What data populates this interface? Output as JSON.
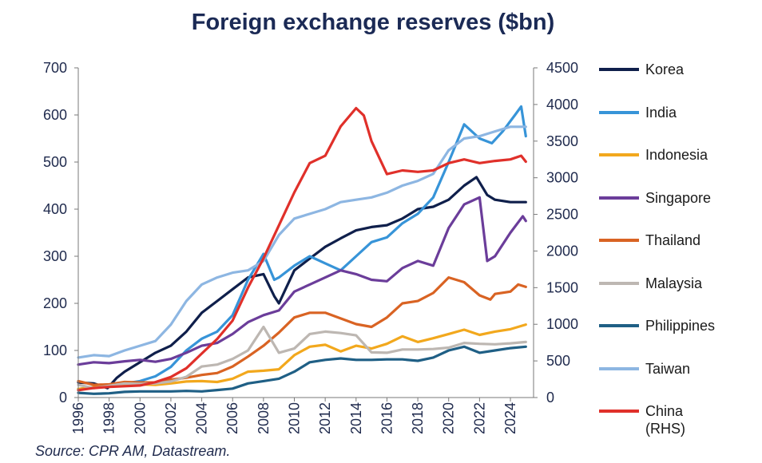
{
  "chart_data": {
    "type": "line",
    "title": "Foreign exchange reserves ($bn)",
    "source": "Source: CPR AM, Datastream.",
    "x_ticks": [
      "1996",
      "1998",
      "2000",
      "2002",
      "2004",
      "2006",
      "2008",
      "2010",
      "2012",
      "2014",
      "2016",
      "2018",
      "2020",
      "2022",
      "2024"
    ],
    "xlim": [
      1996,
      2025.5
    ],
    "left_axis": {
      "ylim": [
        0,
        700
      ],
      "ticks": [
        0,
        100,
        200,
        300,
        400,
        500,
        600,
        700
      ]
    },
    "right_axis": {
      "ylim": [
        0,
        4500
      ],
      "ticks": [
        0,
        500,
        1000,
        1500,
        2000,
        2500,
        3000,
        3500,
        4000,
        4500
      ]
    },
    "grid": false,
    "legend_position": "right",
    "series": [
      {
        "name": "Korea",
        "axis": "left",
        "color": "#0f1f4b",
        "points": [
          [
            1996,
            32
          ],
          [
            1997,
            30
          ],
          [
            1997.9,
            20
          ],
          [
            1998.5,
            42
          ],
          [
            1999,
            55
          ],
          [
            2000,
            75
          ],
          [
            2001,
            95
          ],
          [
            2002,
            110
          ],
          [
            2003,
            140
          ],
          [
            2004,
            180
          ],
          [
            2005,
            205
          ],
          [
            2006,
            230
          ],
          [
            2007,
            255
          ],
          [
            2008,
            262
          ],
          [
            2008.7,
            215
          ],
          [
            2009,
            200
          ],
          [
            2009.5,
            235
          ],
          [
            2010,
            270
          ],
          [
            2011,
            295
          ],
          [
            2012,
            320
          ],
          [
            2013,
            338
          ],
          [
            2014,
            355
          ],
          [
            2015,
            362
          ],
          [
            2016,
            366
          ],
          [
            2017,
            380
          ],
          [
            2018,
            400
          ],
          [
            2019,
            405
          ],
          [
            2020,
            420
          ],
          [
            2021,
            450
          ],
          [
            2021.8,
            468
          ],
          [
            2022.5,
            430
          ],
          [
            2023,
            420
          ],
          [
            2024,
            415
          ],
          [
            2025,
            415
          ]
        ]
      },
      {
        "name": "India",
        "axis": "left",
        "color": "#3794d8",
        "points": [
          [
            1996,
            18
          ],
          [
            1997,
            22
          ],
          [
            1998,
            25
          ],
          [
            1999,
            30
          ],
          [
            2000,
            35
          ],
          [
            2001,
            45
          ],
          [
            2002,
            65
          ],
          [
            2003,
            100
          ],
          [
            2004,
            125
          ],
          [
            2005,
            140
          ],
          [
            2006,
            175
          ],
          [
            2007,
            250
          ],
          [
            2008,
            305
          ],
          [
            2008.7,
            250
          ],
          [
            2009,
            255
          ],
          [
            2010,
            280
          ],
          [
            2011,
            300
          ],
          [
            2012,
            285
          ],
          [
            2013,
            270
          ],
          [
            2014,
            300
          ],
          [
            2015,
            330
          ],
          [
            2016,
            340
          ],
          [
            2017,
            370
          ],
          [
            2018,
            390
          ],
          [
            2019,
            425
          ],
          [
            2020,
            500
          ],
          [
            2021,
            580
          ],
          [
            2022,
            550
          ],
          [
            2022.8,
            540
          ],
          [
            2023.5,
            565
          ],
          [
            2024.3,
            600
          ],
          [
            2024.7,
            618
          ],
          [
            2025,
            555
          ]
        ]
      },
      {
        "name": "Indonesia",
        "axis": "left",
        "color": "#f2a81d",
        "points": [
          [
            1996,
            18
          ],
          [
            1997,
            22
          ],
          [
            1998,
            24
          ],
          [
            1999,
            26
          ],
          [
            2000,
            28
          ],
          [
            2001,
            27
          ],
          [
            2002,
            30
          ],
          [
            2003,
            34
          ],
          [
            2004,
            35
          ],
          [
            2005,
            33
          ],
          [
            2006,
            40
          ],
          [
            2007,
            55
          ],
          [
            2008,
            57
          ],
          [
            2009,
            60
          ],
          [
            2010,
            90
          ],
          [
            2011,
            108
          ],
          [
            2012,
            112
          ],
          [
            2013,
            98
          ],
          [
            2014,
            110
          ],
          [
            2015,
            104
          ],
          [
            2016,
            114
          ],
          [
            2017,
            130
          ],
          [
            2018,
            118
          ],
          [
            2019,
            126
          ],
          [
            2020,
            135
          ],
          [
            2021,
            144
          ],
          [
            2022,
            133
          ],
          [
            2023,
            140
          ],
          [
            2024,
            145
          ],
          [
            2025,
            155
          ]
        ]
      },
      {
        "name": "Singapore",
        "axis": "left",
        "color": "#6b3d9a",
        "points": [
          [
            1996,
            70
          ],
          [
            1997,
            75
          ],
          [
            1998,
            73
          ],
          [
            1999,
            77
          ],
          [
            2000,
            80
          ],
          [
            2001,
            76
          ],
          [
            2002,
            82
          ],
          [
            2003,
            95
          ],
          [
            2004,
            110
          ],
          [
            2005,
            116
          ],
          [
            2006,
            135
          ],
          [
            2007,
            160
          ],
          [
            2008,
            175
          ],
          [
            2009,
            185
          ],
          [
            2010,
            225
          ],
          [
            2011,
            240
          ],
          [
            2012,
            255
          ],
          [
            2013,
            270
          ],
          [
            2014,
            262
          ],
          [
            2015,
            250
          ],
          [
            2016,
            247
          ],
          [
            2017,
            275
          ],
          [
            2018,
            290
          ],
          [
            2019,
            280
          ],
          [
            2020,
            360
          ],
          [
            2021,
            410
          ],
          [
            2022,
            425
          ],
          [
            2022.5,
            290
          ],
          [
            2023,
            300
          ],
          [
            2024,
            350
          ],
          [
            2024.8,
            385
          ],
          [
            2025,
            375
          ]
        ]
      },
      {
        "name": "Thailand",
        "axis": "left",
        "color": "#d96323",
        "points": [
          [
            1996,
            35
          ],
          [
            1997,
            27
          ],
          [
            1998,
            28
          ],
          [
            1999,
            33
          ],
          [
            2000,
            32
          ],
          [
            2001,
            32
          ],
          [
            2002,
            38
          ],
          [
            2003,
            42
          ],
          [
            2004,
            48
          ],
          [
            2005,
            52
          ],
          [
            2006,
            66
          ],
          [
            2007,
            87
          ],
          [
            2008,
            110
          ],
          [
            2009,
            138
          ],
          [
            2010,
            170
          ],
          [
            2011,
            180
          ],
          [
            2012,
            180
          ],
          [
            2013,
            168
          ],
          [
            2014,
            156
          ],
          [
            2015,
            150
          ],
          [
            2016,
            170
          ],
          [
            2017,
            200
          ],
          [
            2018,
            205
          ],
          [
            2019,
            222
          ],
          [
            2020,
            255
          ],
          [
            2021,
            245
          ],
          [
            2022,
            217
          ],
          [
            2022.7,
            208
          ],
          [
            2023,
            220
          ],
          [
            2024,
            225
          ],
          [
            2024.5,
            240
          ],
          [
            2025,
            235
          ]
        ]
      },
      {
        "name": "Malaysia",
        "axis": "left",
        "color": "#bdb7b2",
        "points": [
          [
            1996,
            27
          ],
          [
            1997,
            20
          ],
          [
            1998,
            25
          ],
          [
            1999,
            30
          ],
          [
            2000,
            29
          ],
          [
            2001,
            30
          ],
          [
            2002,
            34
          ],
          [
            2003,
            44
          ],
          [
            2004,
            66
          ],
          [
            2005,
            70
          ],
          [
            2006,
            82
          ],
          [
            2007,
            100
          ],
          [
            2008,
            150
          ],
          [
            2009,
            95
          ],
          [
            2010,
            104
          ],
          [
            2011,
            135
          ],
          [
            2012,
            140
          ],
          [
            2013,
            137
          ],
          [
            2014,
            132
          ],
          [
            2015,
            96
          ],
          [
            2016,
            95
          ],
          [
            2017,
            102
          ],
          [
            2018,
            102
          ],
          [
            2019,
            103
          ],
          [
            2020,
            106
          ],
          [
            2021,
            116
          ],
          [
            2022,
            114
          ],
          [
            2023,
            113
          ],
          [
            2024,
            115
          ],
          [
            2025,
            118
          ]
        ]
      },
      {
        "name": "Philippines",
        "axis": "left",
        "color": "#1f5f85",
        "points": [
          [
            1996,
            10
          ],
          [
            1997,
            8
          ],
          [
            1998,
            9
          ],
          [
            1999,
            12
          ],
          [
            2000,
            13
          ],
          [
            2001,
            13
          ],
          [
            2002,
            13
          ],
          [
            2003,
            14
          ],
          [
            2004,
            13
          ],
          [
            2005,
            16
          ],
          [
            2006,
            19
          ],
          [
            2007,
            30
          ],
          [
            2008,
            35
          ],
          [
            2009,
            40
          ],
          [
            2010,
            55
          ],
          [
            2011,
            75
          ],
          [
            2012,
            80
          ],
          [
            2013,
            83
          ],
          [
            2014,
            80
          ],
          [
            2015,
            80
          ],
          [
            2016,
            81
          ],
          [
            2017,
            81
          ],
          [
            2018,
            78
          ],
          [
            2019,
            85
          ],
          [
            2020,
            100
          ],
          [
            2021,
            108
          ],
          [
            2022,
            95
          ],
          [
            2023,
            100
          ],
          [
            2024,
            105
          ],
          [
            2025,
            108
          ]
        ]
      },
      {
        "name": "Taiwan",
        "axis": "left",
        "color": "#8db6e2",
        "points": [
          [
            1996,
            85
          ],
          [
            1997,
            90
          ],
          [
            1998,
            88
          ],
          [
            1999,
            100
          ],
          [
            2000,
            110
          ],
          [
            2001,
            120
          ],
          [
            2002,
            155
          ],
          [
            2003,
            205
          ],
          [
            2004,
            240
          ],
          [
            2005,
            255
          ],
          [
            2006,
            265
          ],
          [
            2007,
            270
          ],
          [
            2008,
            290
          ],
          [
            2009,
            345
          ],
          [
            2010,
            380
          ],
          [
            2011,
            390
          ],
          [
            2012,
            400
          ],
          [
            2013,
            415
          ],
          [
            2014,
            420
          ],
          [
            2015,
            425
          ],
          [
            2016,
            435
          ],
          [
            2017,
            450
          ],
          [
            2018,
            460
          ],
          [
            2019,
            475
          ],
          [
            2020,
            525
          ],
          [
            2021,
            550
          ],
          [
            2022,
            555
          ],
          [
            2023,
            565
          ],
          [
            2024,
            575
          ],
          [
            2025,
            575
          ]
        ]
      },
      {
        "name": "China (RHS)",
        "axis": "right",
        "color": "#e0302a",
        "points": [
          [
            1996,
            100
          ],
          [
            1997,
            130
          ],
          [
            1998,
            145
          ],
          [
            1999,
            155
          ],
          [
            2000,
            165
          ],
          [
            2001,
            210
          ],
          [
            2002,
            280
          ],
          [
            2003,
            400
          ],
          [
            2004,
            600
          ],
          [
            2005,
            800
          ],
          [
            2006,
            1050
          ],
          [
            2007,
            1500
          ],
          [
            2008,
            1900
          ],
          [
            2009,
            2350
          ],
          [
            2010,
            2800
          ],
          [
            2011,
            3200
          ],
          [
            2012,
            3300
          ],
          [
            2013,
            3700
          ],
          [
            2014,
            3950
          ],
          [
            2014.5,
            3850
          ],
          [
            2015,
            3500
          ],
          [
            2016,
            3050
          ],
          [
            2017,
            3100
          ],
          [
            2018,
            3080
          ],
          [
            2019,
            3100
          ],
          [
            2020,
            3200
          ],
          [
            2021,
            3250
          ],
          [
            2022,
            3200
          ],
          [
            2023,
            3230
          ],
          [
            2024,
            3250
          ],
          [
            2024.7,
            3300
          ],
          [
            2025,
            3220
          ]
        ]
      }
    ]
  }
}
